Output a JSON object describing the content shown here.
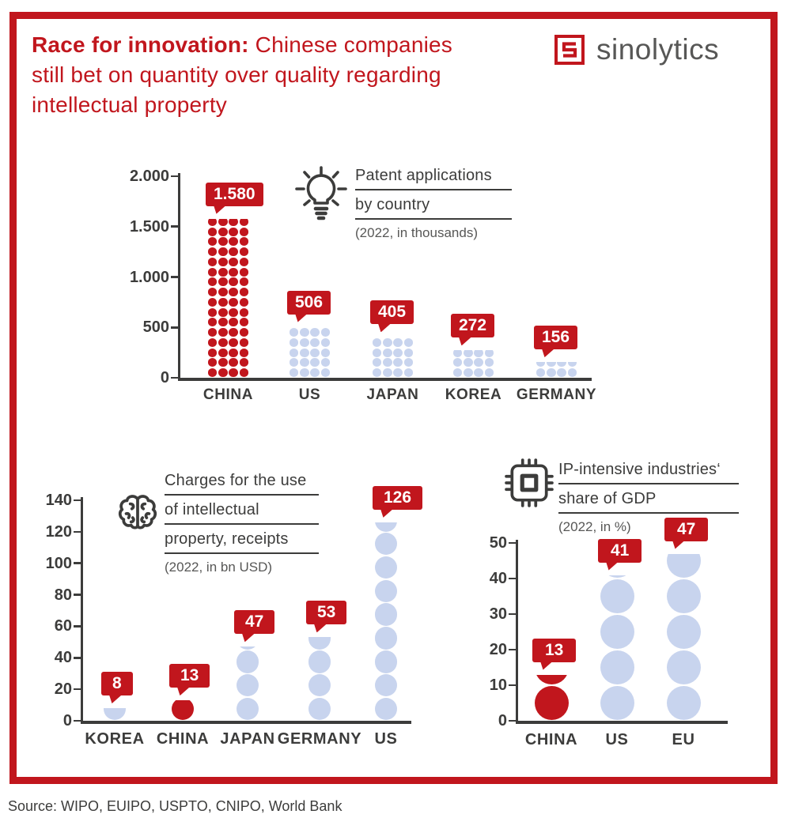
{
  "header": {
    "title_lines": [
      {
        "bold": "Race for innovation:",
        "rest": " Chinese companies"
      },
      {
        "bold": "",
        "rest": "still bet on quantity over quality regarding"
      },
      {
        "bold": "",
        "rest": "intellectual property"
      }
    ],
    "logo_text": "sinolytics"
  },
  "source": "Source: WIPO, EUIPO, USPTO, CNIPO, World Bank",
  "colors": {
    "red": "#c1161d",
    "blue": "#c8d4ee",
    "dark": "#3c3c3b",
    "gray": "#575756"
  },
  "chart_data": [
    {
      "type": "pictogram-bar",
      "icon": "lightbulb-icon",
      "title_lines": [
        "Patent applications",
        "by country"
      ],
      "subtitle": "(2022, in thousands)",
      "categories": [
        "CHINA",
        "US",
        "JAPAN",
        "KOREA",
        "GERMANY"
      ],
      "values": [
        1580,
        506,
        405,
        272,
        156
      ],
      "value_labels": [
        "1.580",
        "506",
        "405",
        "272",
        "156"
      ],
      "highlighted": [
        "CHINA"
      ],
      "ylim": [
        0,
        2000
      ],
      "yticks": [
        "2.000",
        "1.500",
        "1.000",
        "500",
        "0"
      ],
      "units_per_dot_row": 100,
      "dots_per_row": 4,
      "legend": "none",
      "grid": false
    },
    {
      "type": "pictogram-bar",
      "icon": "brain-icon",
      "title_lines": [
        "Charges for the use",
        "of intellectual",
        "property, receipts"
      ],
      "subtitle": "(2022, in bn USD)",
      "categories": [
        "KOREA",
        "CHINA",
        "JAPAN",
        "GERMANY",
        "US"
      ],
      "values": [
        8,
        13,
        47,
        53,
        126
      ],
      "value_labels": [
        "8",
        "13",
        "47",
        "53",
        "126"
      ],
      "highlighted": [
        "CHINA"
      ],
      "ylim": [
        0,
        140
      ],
      "yticks": [
        "140",
        "120",
        "100",
        "80",
        "60",
        "40",
        "20",
        "0"
      ],
      "units_per_dot_row": 15,
      "dots_per_row": 1,
      "legend": "none",
      "grid": false
    },
    {
      "type": "pictogram-bar",
      "icon": "chip-icon",
      "title_lines": [
        "IP-intensive industries‘",
        "share of GDP"
      ],
      "subtitle": "(2022, in %)",
      "categories": [
        "CHINA",
        "US",
        "EU"
      ],
      "values": [
        13,
        41,
        47
      ],
      "value_labels": [
        "13",
        "41",
        "47"
      ],
      "highlighted": [
        "CHINA"
      ],
      "ylim": [
        0,
        50
      ],
      "yticks": [
        "50",
        "40",
        "30",
        "20",
        "10",
        "0"
      ],
      "units_per_dot_row": 10,
      "dots_per_row": 1,
      "legend": "none",
      "grid": false
    }
  ]
}
